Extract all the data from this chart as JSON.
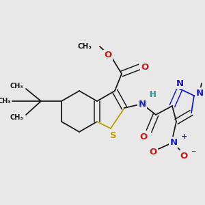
{
  "bg_color": "#e8e8e8",
  "bond_color": "#1a1a1a",
  "S_color": "#b8a000",
  "N_color": "#1a1acc",
  "O_color": "#cc1a1a",
  "H_color": "#2a9090",
  "figsize": [
    3.0,
    3.0
  ],
  "dpi": 100,
  "xlim": [
    0,
    300
  ],
  "ylim": [
    0,
    300
  ]
}
